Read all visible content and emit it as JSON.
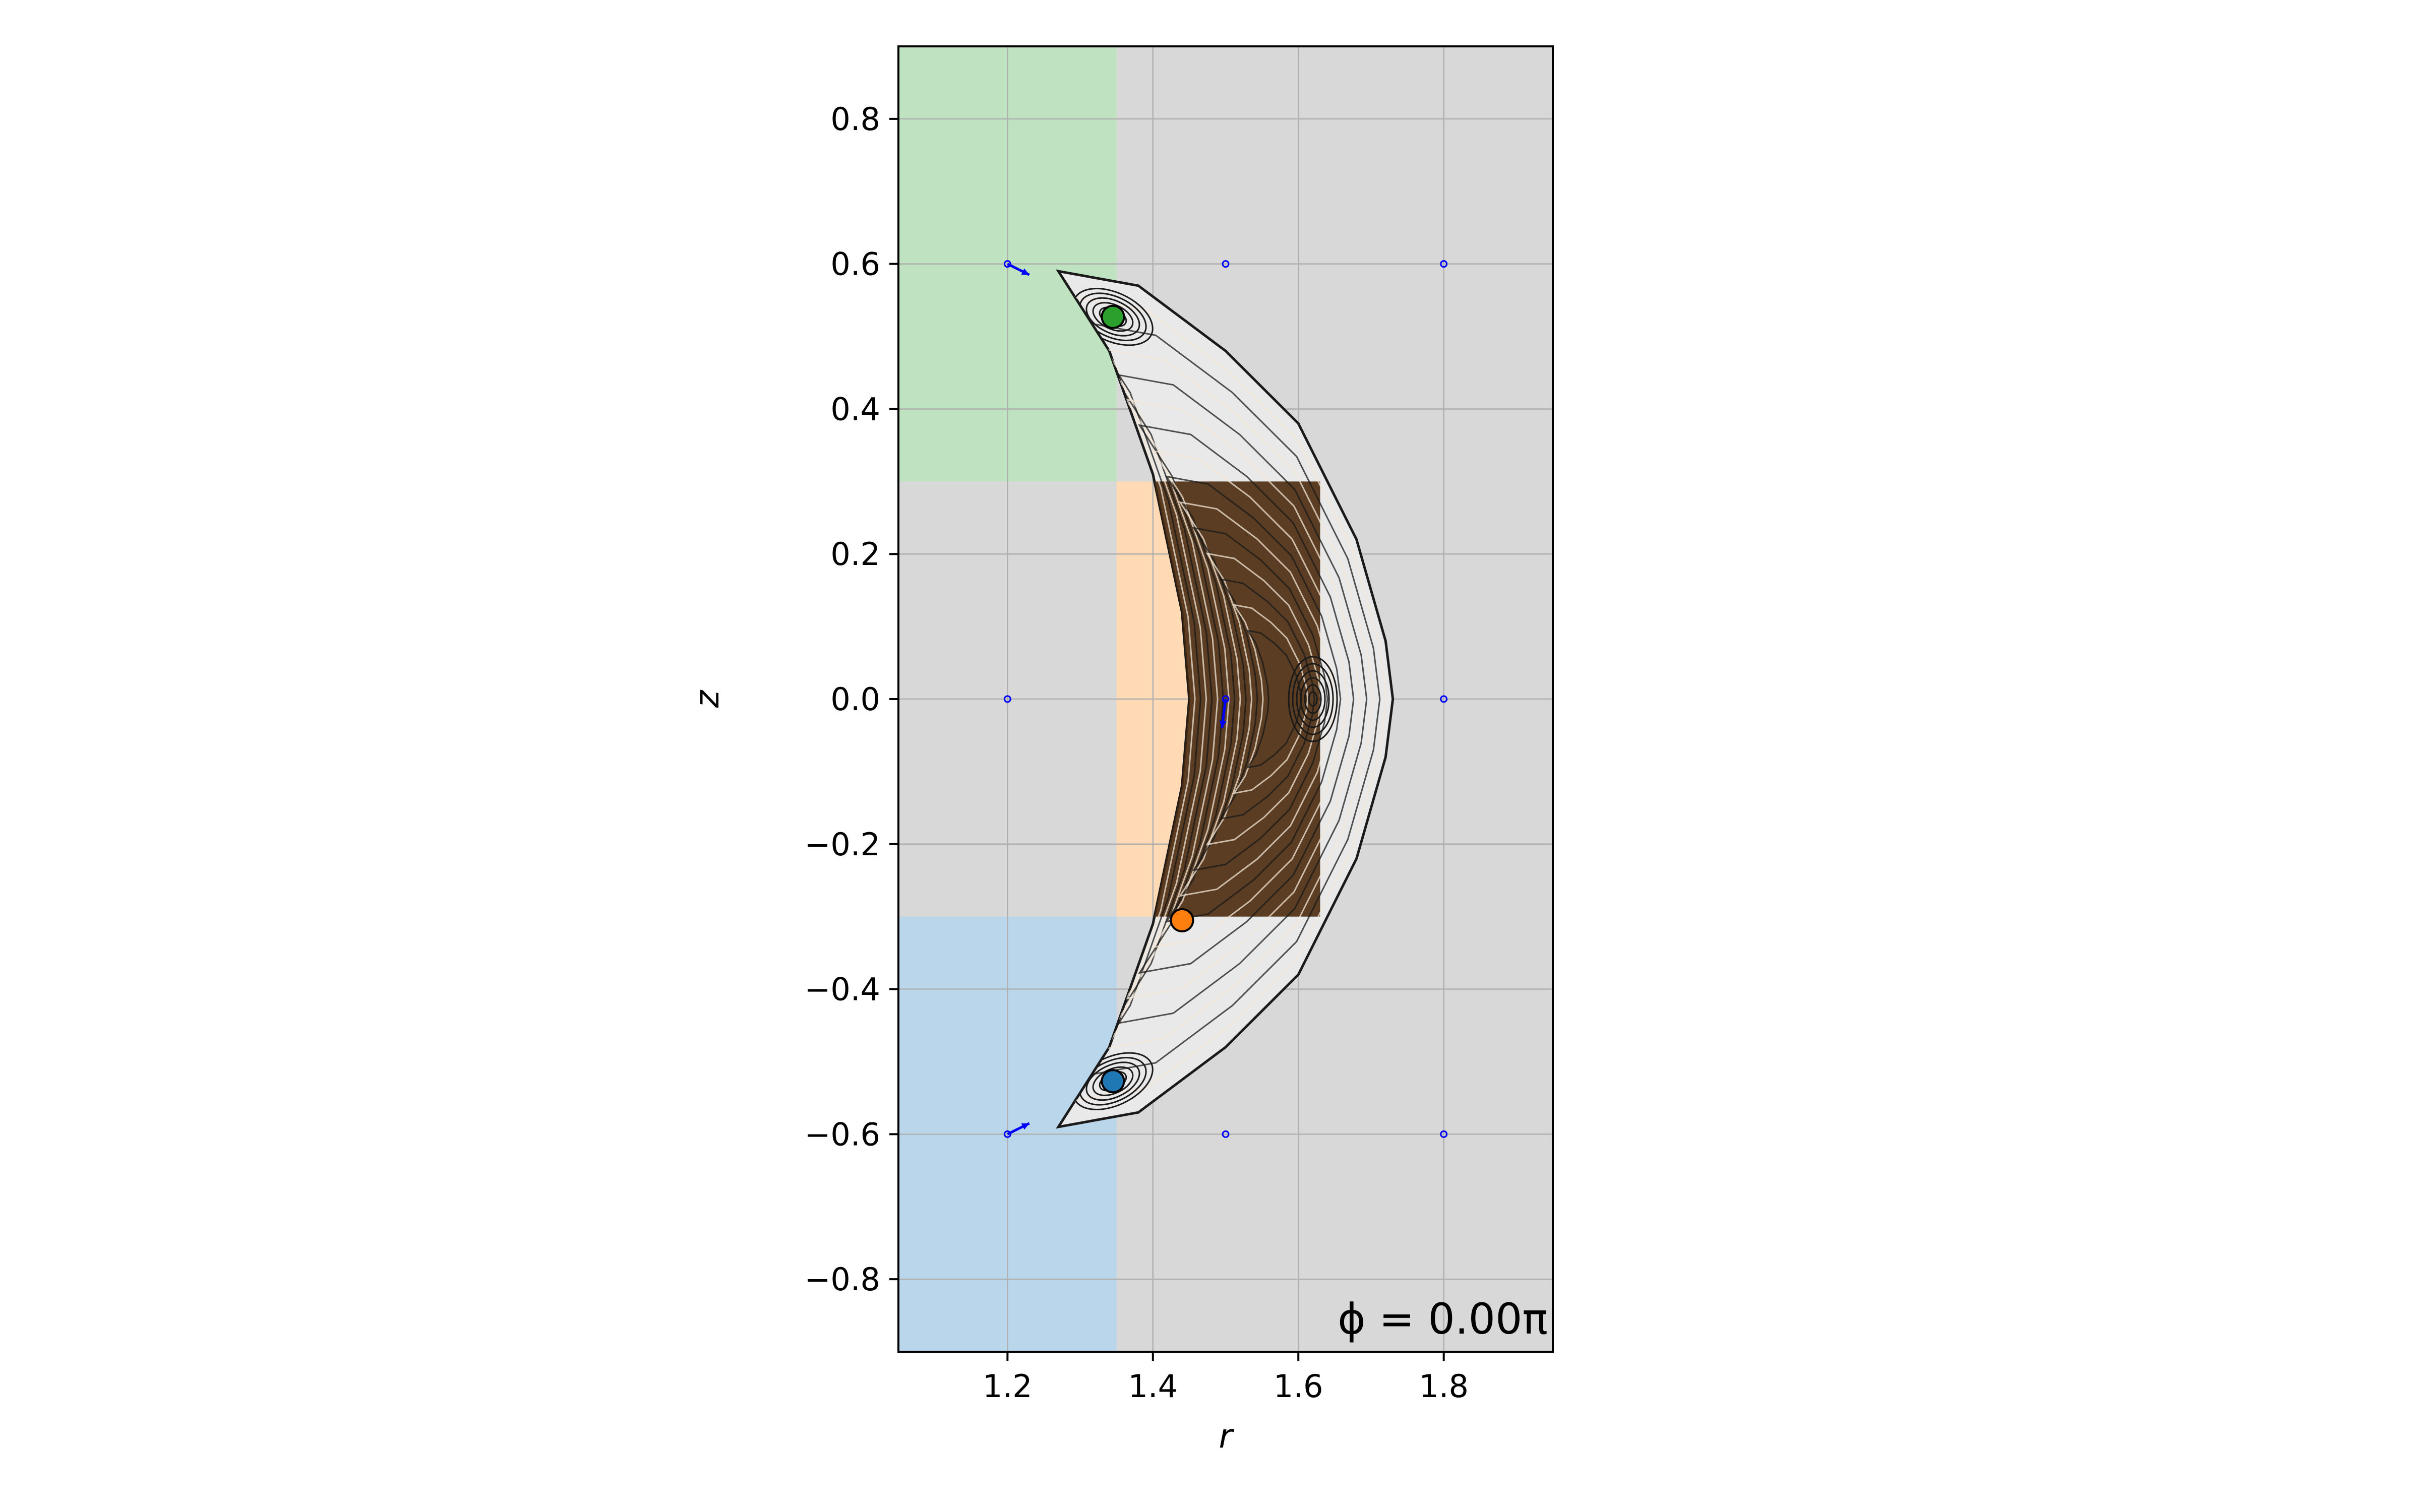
{
  "chart_data": {
    "type": "scatter",
    "title": "",
    "xlabel": "r",
    "ylabel": "z",
    "xlim": [
      1.05,
      1.95
    ],
    "ylim": [
      -0.9,
      0.9
    ],
    "xticks": [
      1.2,
      1.4,
      1.6,
      1.8
    ],
    "yticks": [
      -0.8,
      -0.6,
      -0.4,
      -0.2,
      0.0,
      0.2,
      0.4,
      0.6,
      0.8
    ],
    "xtick_labels": [
      "1.2",
      "1.4",
      "1.6",
      "1.8"
    ],
    "ytick_labels": [
      "−0.8",
      "−0.6",
      "−0.4",
      "−0.2",
      "0.0",
      "0.2",
      "0.4",
      "0.6",
      "0.8"
    ],
    "grid": true,
    "background_color": "#d8d8d8",
    "annotation": "ϕ = 0.00π",
    "regions": [
      {
        "r": [
          1.05,
          1.35
        ],
        "z": [
          0.3,
          0.9
        ],
        "color": "#bfe3c0"
      },
      {
        "r": [
          1.35,
          1.6
        ],
        "z": [
          -0.3,
          0.3
        ],
        "color": "#ffdab5"
      },
      {
        "r": [
          1.05,
          1.35
        ],
        "z": [
          -0.9,
          -0.3
        ],
        "color": "#bad6ea"
      }
    ],
    "cross_section": {
      "inner_edge": [
        [
          1.27,
          0.59
        ],
        [
          1.34,
          0.48
        ],
        [
          1.4,
          0.31
        ],
        [
          1.44,
          0.12
        ],
        [
          1.45,
          0.0
        ],
        [
          1.44,
          -0.12
        ],
        [
          1.4,
          -0.31
        ],
        [
          1.34,
          -0.48
        ],
        [
          1.27,
          -0.59
        ]
      ],
      "outer_edge": [
        [
          1.27,
          0.59
        ],
        [
          1.38,
          0.57
        ],
        [
          1.5,
          0.48
        ],
        [
          1.6,
          0.38
        ],
        [
          1.68,
          0.22
        ],
        [
          1.72,
          0.08
        ],
        [
          1.73,
          0.0
        ],
        [
          1.72,
          -0.08
        ],
        [
          1.68,
          -0.22
        ],
        [
          1.6,
          -0.38
        ],
        [
          1.5,
          -0.48
        ],
        [
          1.38,
          -0.57
        ],
        [
          1.27,
          -0.59
        ]
      ],
      "dense_core": {
        "r": [
          1.4,
          1.63
        ],
        "z": [
          -0.3,
          0.3
        ]
      },
      "line_color": "#1a1a1a",
      "core_color": "#4a2a0c"
    },
    "magnetic_axes": [
      {
        "r": 1.345,
        "z": 0.527,
        "color": "#2ca02c"
      },
      {
        "r": 1.44,
        "z": -0.305,
        "color": "#ff7f0e"
      },
      {
        "r": 1.345,
        "z": -0.527,
        "color": "#1f77b4"
      }
    ],
    "coil_points": {
      "r": [
        1.2,
        1.5,
        1.8,
        1.2,
        1.5,
        1.8,
        1.2,
        1.5,
        1.8
      ],
      "z": [
        0.6,
        0.6,
        0.6,
        0.0,
        0.0,
        0.0,
        -0.6,
        -0.6,
        -0.6
      ],
      "color": "#0000ff"
    },
    "field_arrows": [
      {
        "r": 1.2,
        "z": 0.6,
        "dr": 0.03,
        "dz": -0.015
      },
      {
        "r": 1.5,
        "z": 0.0,
        "dr": -0.005,
        "dz": -0.04
      },
      {
        "r": 1.2,
        "z": -0.6,
        "dr": 0.03,
        "dz": 0.015
      }
    ]
  }
}
